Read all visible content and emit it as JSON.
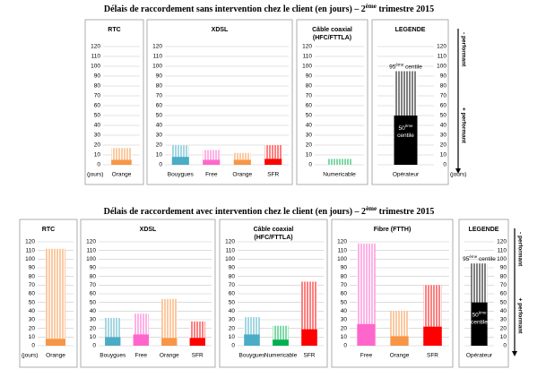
{
  "chart_data": [
    {
      "type": "bar",
      "title": {
        "start": "Délais de raccordement sans intervention chez le client (en jours) – 2",
        "sup": "ème",
        "end": " trimestre 2015"
      },
      "ylim": [
        0,
        120
      ],
      "yticks": [
        0,
        10,
        20,
        30,
        40,
        50,
        60,
        70,
        80,
        90,
        100,
        110,
        120
      ],
      "unit_label": "(jours)",
      "panels": [
        {
          "title": [
            "RTC"
          ],
          "categories": [
            "Orange"
          ],
          "medians": [
            5
          ],
          "p95": [
            17
          ],
          "colors": [
            "#f79646"
          ]
        },
        {
          "title": [
            "XDSL"
          ],
          "categories": [
            "Bouygues",
            "Free",
            "Orange",
            "SFR"
          ],
          "medians": [
            8,
            5,
            5,
            6
          ],
          "p95": [
            20,
            15,
            12,
            20
          ],
          "colors": [
            "#4bacc6",
            "#ff66cc",
            "#f79646",
            "#ff0000"
          ]
        },
        {
          "title": [
            "Câble coaxial",
            "(HFC/FTTLA)"
          ],
          "categories": [
            "Numericable"
          ],
          "medians": [
            0
          ],
          "p95": [
            6
          ],
          "colors": [
            "#00b050"
          ]
        }
      ],
      "legend": {
        "title": "LEGENDE",
        "category": "Opérateur",
        "median": 50,
        "p95": 95,
        "color": "#000000",
        "p95_label": {
          "start": "95",
          "sup": "ème",
          "end": " centile"
        },
        "median_label": {
          "start": "50",
          "sup": "ème",
          "end": "centile"
        }
      },
      "performance": {
        "low": "- performant",
        "high": "+ performant"
      }
    },
    {
      "type": "bar",
      "title": {
        "start": "Délais de raccordement avec intervention chez le client (en jours) – 2",
        "sup": "ème",
        "end": " trimestre 2015"
      },
      "ylim": [
        0,
        120
      ],
      "yticks": [
        0,
        10,
        20,
        30,
        40,
        50,
        60,
        70,
        80,
        90,
        100,
        110,
        120
      ],
      "unit_label": "(jours)",
      "panels": [
        {
          "title": [
            "RTC"
          ],
          "categories": [
            "Orange"
          ],
          "medians": [
            8
          ],
          "p95": [
            112
          ],
          "colors": [
            "#f79646"
          ]
        },
        {
          "title": [
            "XDSL"
          ],
          "categories": [
            "Bouygues",
            "Free",
            "Orange",
            "SFR"
          ],
          "medians": [
            10,
            13,
            9,
            9
          ],
          "p95": [
            32,
            37,
            54,
            28
          ],
          "colors": [
            "#4bacc6",
            "#ff66cc",
            "#f79646",
            "#ff0000"
          ]
        },
        {
          "title": [
            "Câble coaxial",
            "(HFC/FTTLA)"
          ],
          "categories": [
            "Bouygues",
            "Numericable",
            "SFR"
          ],
          "medians": [
            13,
            7,
            19
          ],
          "p95": [
            33,
            23,
            74
          ],
          "colors": [
            "#4bacc6",
            "#00b050",
            "#ff0000"
          ]
        },
        {
          "title": [
            "Fibre (FTTH)"
          ],
          "categories": [
            "Free",
            "Orange",
            "SFR"
          ],
          "medians": [
            25,
            11,
            22
          ],
          "p95": [
            118,
            40,
            70
          ],
          "colors": [
            "#ff66cc",
            "#f79646",
            "#ff0000"
          ]
        }
      ],
      "legend": {
        "title": "LEGENDE",
        "category": "Opérateur",
        "median": 50,
        "p95": 95,
        "color": "#000000",
        "p95_label": {
          "start": "95",
          "sup": "ème",
          "end": " centile"
        },
        "median_label": {
          "start": "50",
          "sup": "ème",
          "end": "centile"
        }
      },
      "performance": {
        "low": "- performant",
        "high": "+ performant"
      }
    }
  ]
}
